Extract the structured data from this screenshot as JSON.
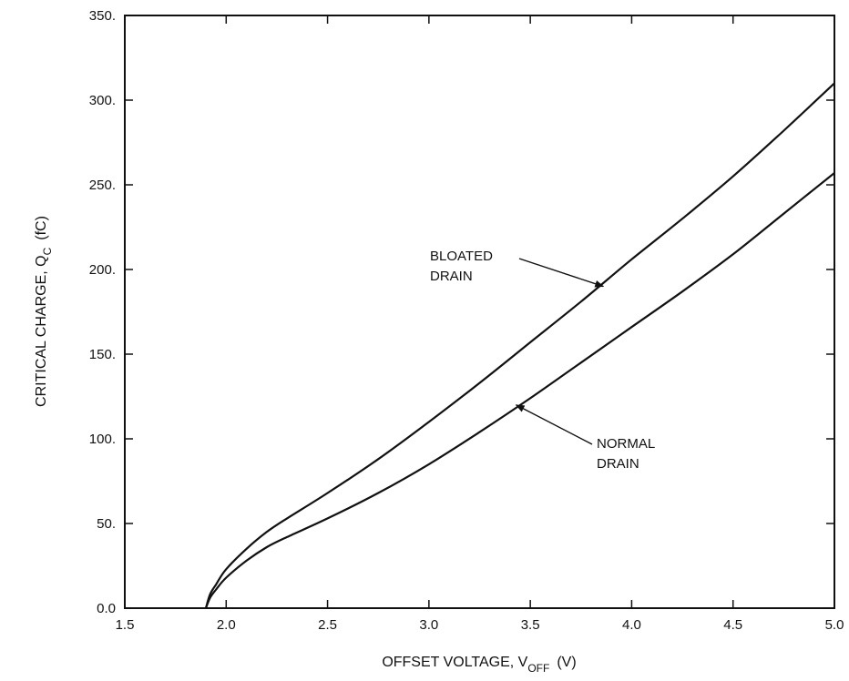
{
  "chart_data": {
    "type": "line",
    "xlabel": "OFFSET VOLTAGE, V",
    "xlabel_sub": "OFF",
    "xlabel_unit": "(V)",
    "ylabel": "CRITICAL CHARGE, Q",
    "ylabel_sub": "C",
    "ylabel_unit": "(fC)",
    "xlim": [
      1.5,
      5.0
    ],
    "ylim": [
      0,
      350
    ],
    "x_ticks": [
      "1.5",
      "2.0",
      "2.5",
      "3.0",
      "3.5",
      "4.0",
      "4.5",
      "5.0"
    ],
    "y_ticks": [
      "0.0",
      "50.",
      "100.",
      "150.",
      "200.",
      "250.",
      "300.",
      "350."
    ],
    "grid": false,
    "series": [
      {
        "x": [
          1.9,
          1.92,
          1.95,
          2.0,
          2.1,
          2.2,
          2.3,
          2.5,
          2.75,
          3.0,
          3.25,
          3.5,
          3.75,
          4.0,
          4.25,
          4.5,
          4.75,
          5.0
        ],
        "y": [
          0,
          8,
          14,
          23,
          35,
          45,
          53,
          68,
          88,
          110,
          133,
          157,
          181,
          206,
          230,
          255,
          282,
          310
        ]
      },
      {
        "x": [
          1.9,
          1.92,
          1.95,
          2.0,
          2.1,
          2.2,
          2.3,
          2.5,
          2.75,
          3.0,
          3.25,
          3.5,
          3.75,
          4.0,
          4.25,
          4.5,
          4.75,
          5.0
        ],
        "y": [
          0,
          6,
          11,
          18,
          28,
          36,
          42,
          53,
          68,
          85,
          104,
          124,
          145,
          166,
          187,
          209,
          233,
          257
        ]
      }
    ],
    "annotations": [
      {
        "lines": [
          "BLOATED",
          "DRAIN"
        ],
        "arrow_to": [
          3.86,
          190
        ]
      },
      {
        "lines": [
          "NORMAL",
          "DRAIN"
        ],
        "arrow_to": [
          3.43,
          120
        ]
      }
    ]
  }
}
